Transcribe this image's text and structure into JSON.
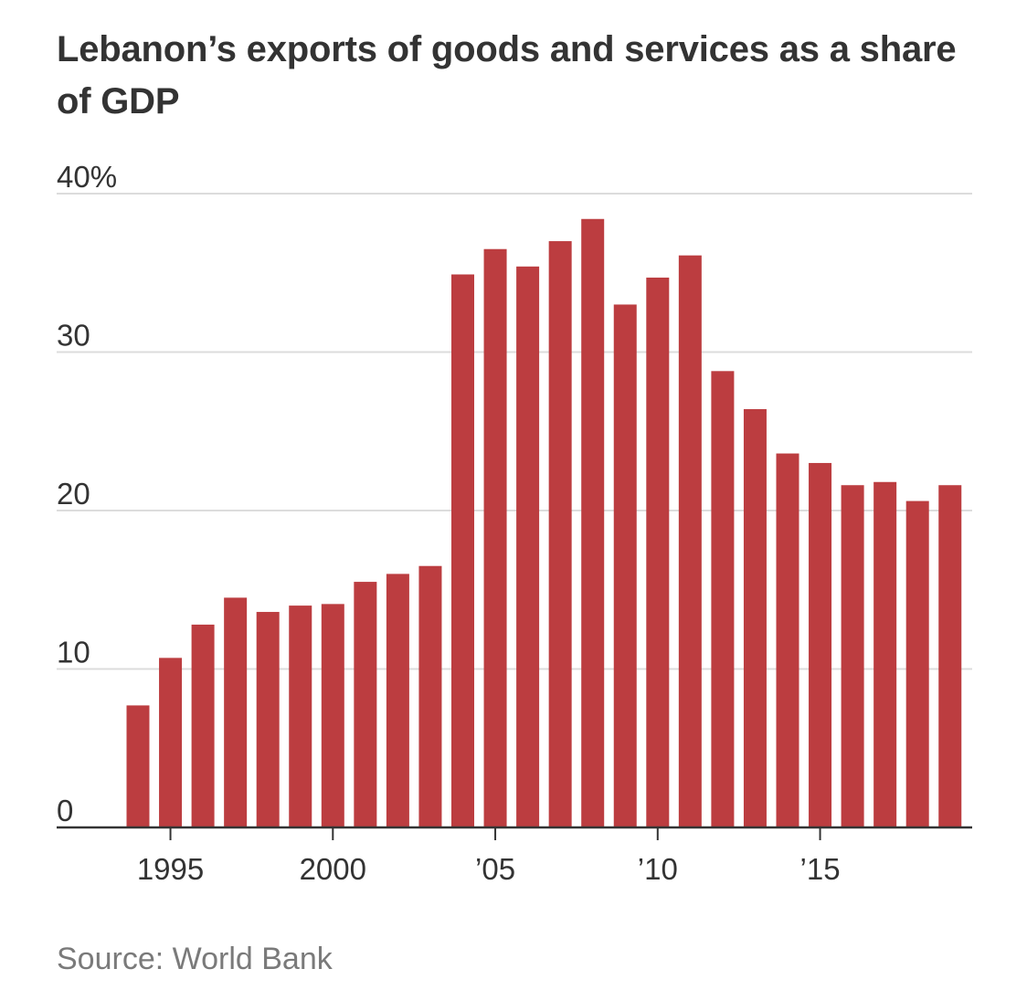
{
  "chart_data": {
    "type": "bar",
    "title": "Lebanon’s exports of goods and services as a share of GDP",
    "source": "Source: World Bank",
    "xlabel": "",
    "ylabel": "",
    "ylim": [
      0,
      40
    ],
    "yticks": [
      {
        "value": 0,
        "label": "0"
      },
      {
        "value": 10,
        "label": "10"
      },
      {
        "value": 20,
        "label": "20"
      },
      {
        "value": 30,
        "label": "30"
      },
      {
        "value": 40,
        "label": "40%"
      }
    ],
    "xticks": [
      {
        "year": 1995,
        "label": "1995"
      },
      {
        "year": 2000,
        "label": "2000"
      },
      {
        "year": 2005,
        "label": "’05"
      },
      {
        "year": 2010,
        "label": "’10"
      },
      {
        "year": 2015,
        "label": "’15"
      }
    ],
    "categories": [
      1994,
      1995,
      1996,
      1997,
      1998,
      1999,
      2000,
      2001,
      2002,
      2003,
      2004,
      2005,
      2006,
      2007,
      2008,
      2009,
      2010,
      2011,
      2012,
      2013,
      2014,
      2015,
      2016,
      2017,
      2018,
      2019
    ],
    "values": [
      7.7,
      10.7,
      12.8,
      14.5,
      13.6,
      14.0,
      14.1,
      15.5,
      16.0,
      16.5,
      34.9,
      36.5,
      35.4,
      37.0,
      38.4,
      33.0,
      34.7,
      36.1,
      28.8,
      26.4,
      23.6,
      23.0,
      21.6,
      21.8,
      20.6,
      21.6
    ],
    "colors": {
      "bar": "#bc3d40",
      "grid": "#dcdcdc",
      "axis": "#333333"
    },
    "grid": true
  }
}
